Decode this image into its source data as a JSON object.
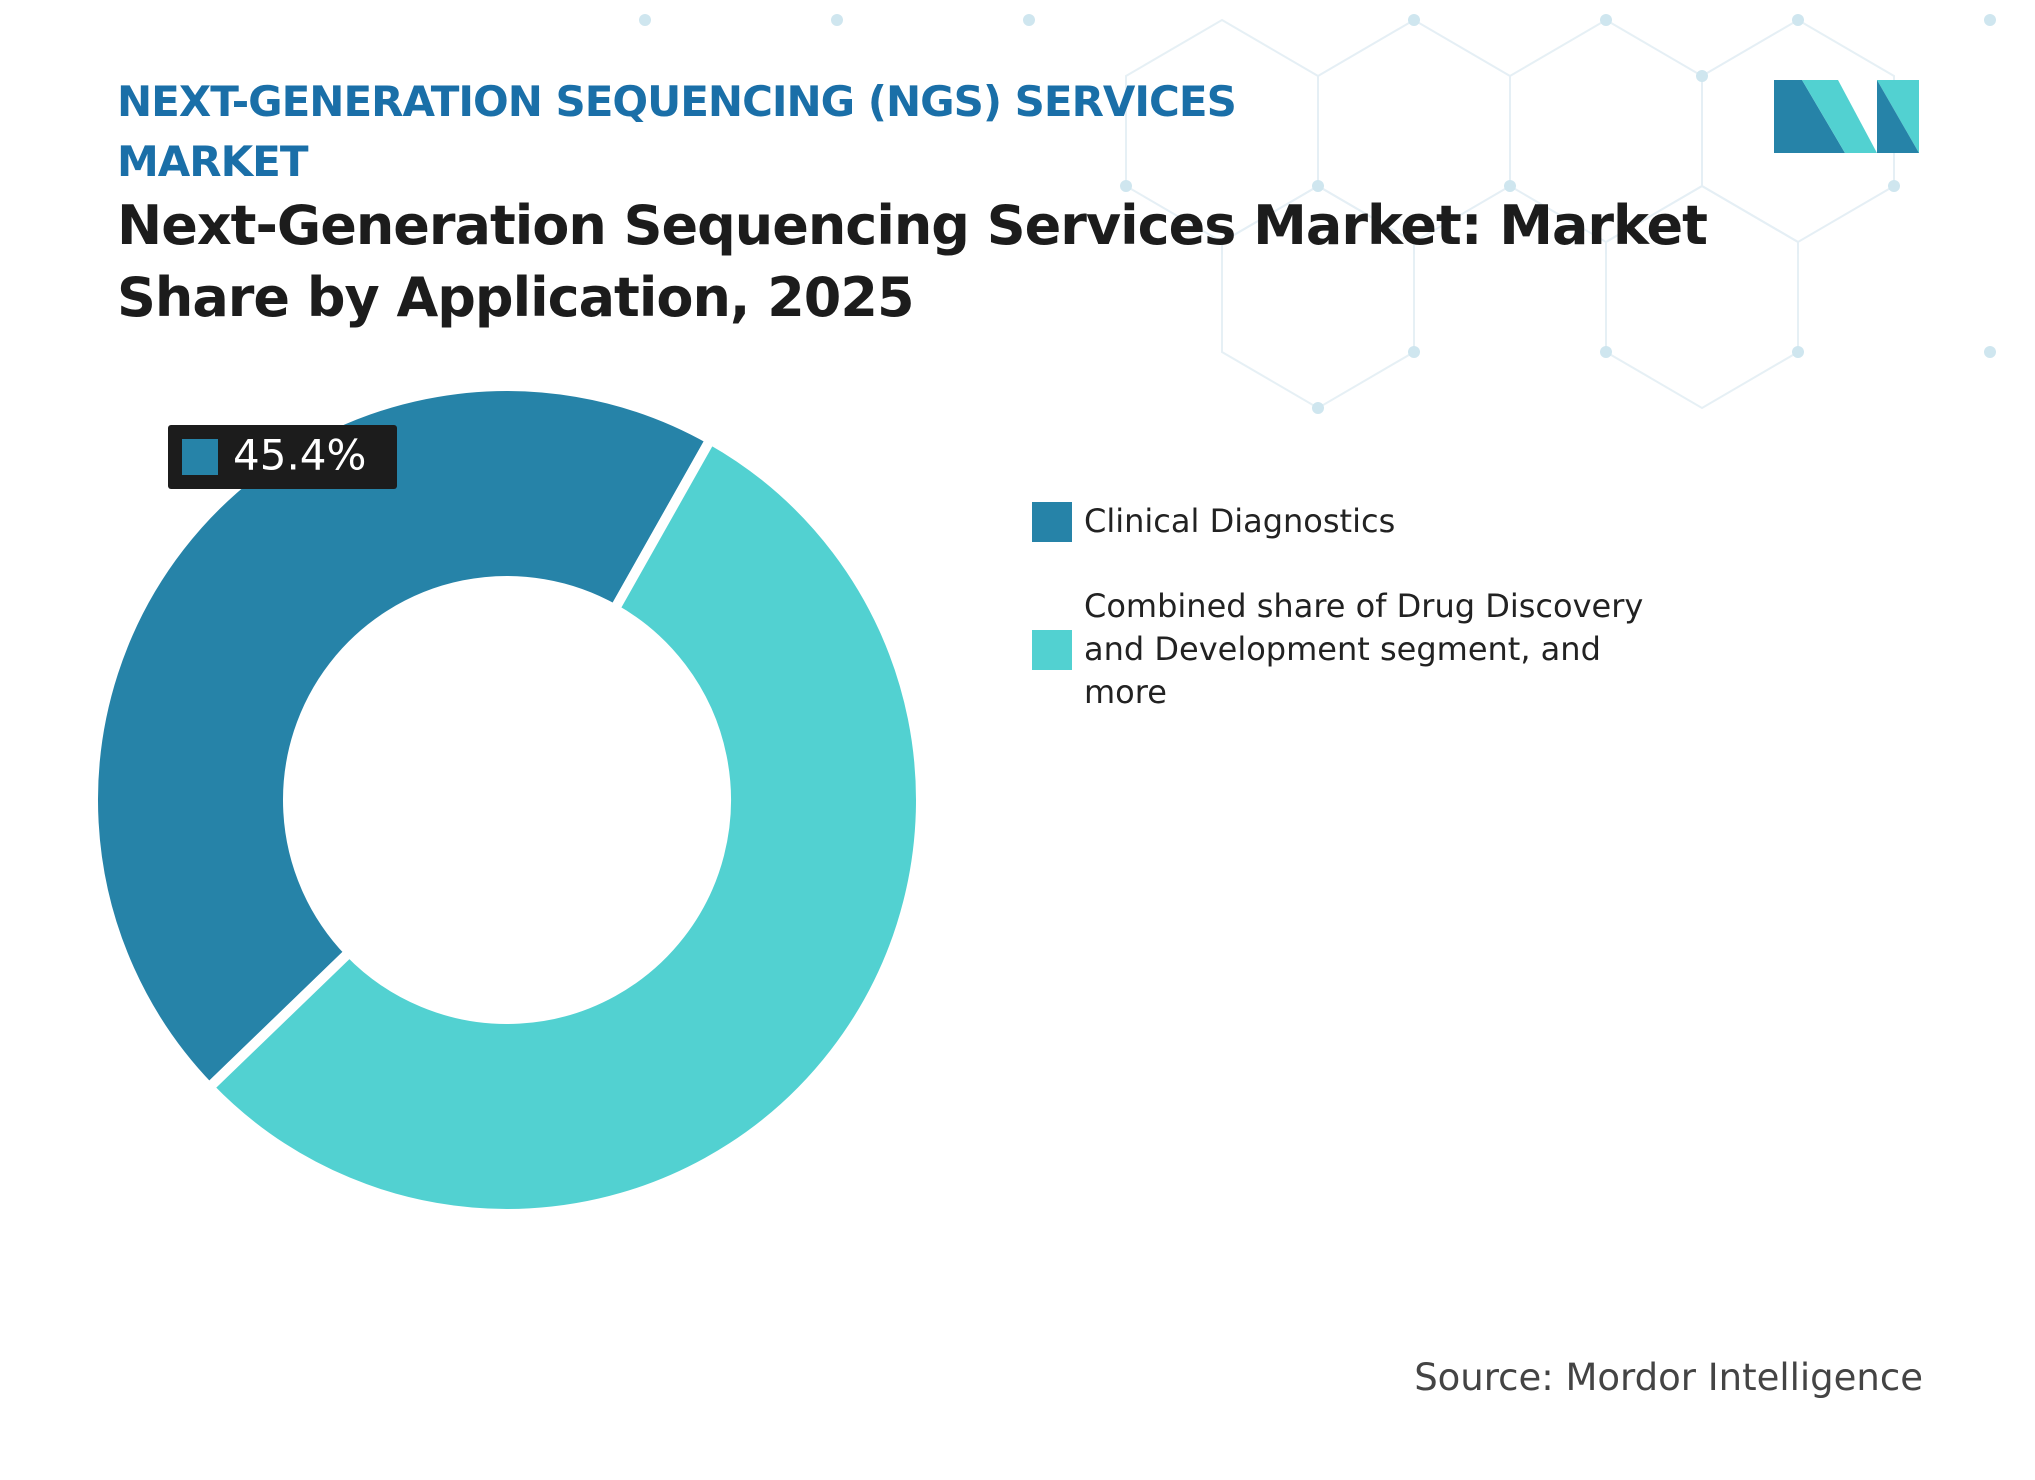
{
  "chart_data": {
    "type": "pie",
    "donut": true,
    "subtitle": "NEXT-GENERATION SEQUENCING (NGS) SERVICES MARKET",
    "title": "Next-Generation Sequencing Services Market: Market Share by Application, 2025",
    "categories": [
      "Clinical Diagnostics",
      "Combined share of Drug Discovery and Development segment, and more"
    ],
    "values": [
      45.4,
      54.6
    ],
    "value_labels": [
      "45.4%",
      null
    ],
    "colors": [
      "#2683a8",
      "#52d1d1"
    ],
    "source": "Source: Mordor Intelligence"
  }
}
